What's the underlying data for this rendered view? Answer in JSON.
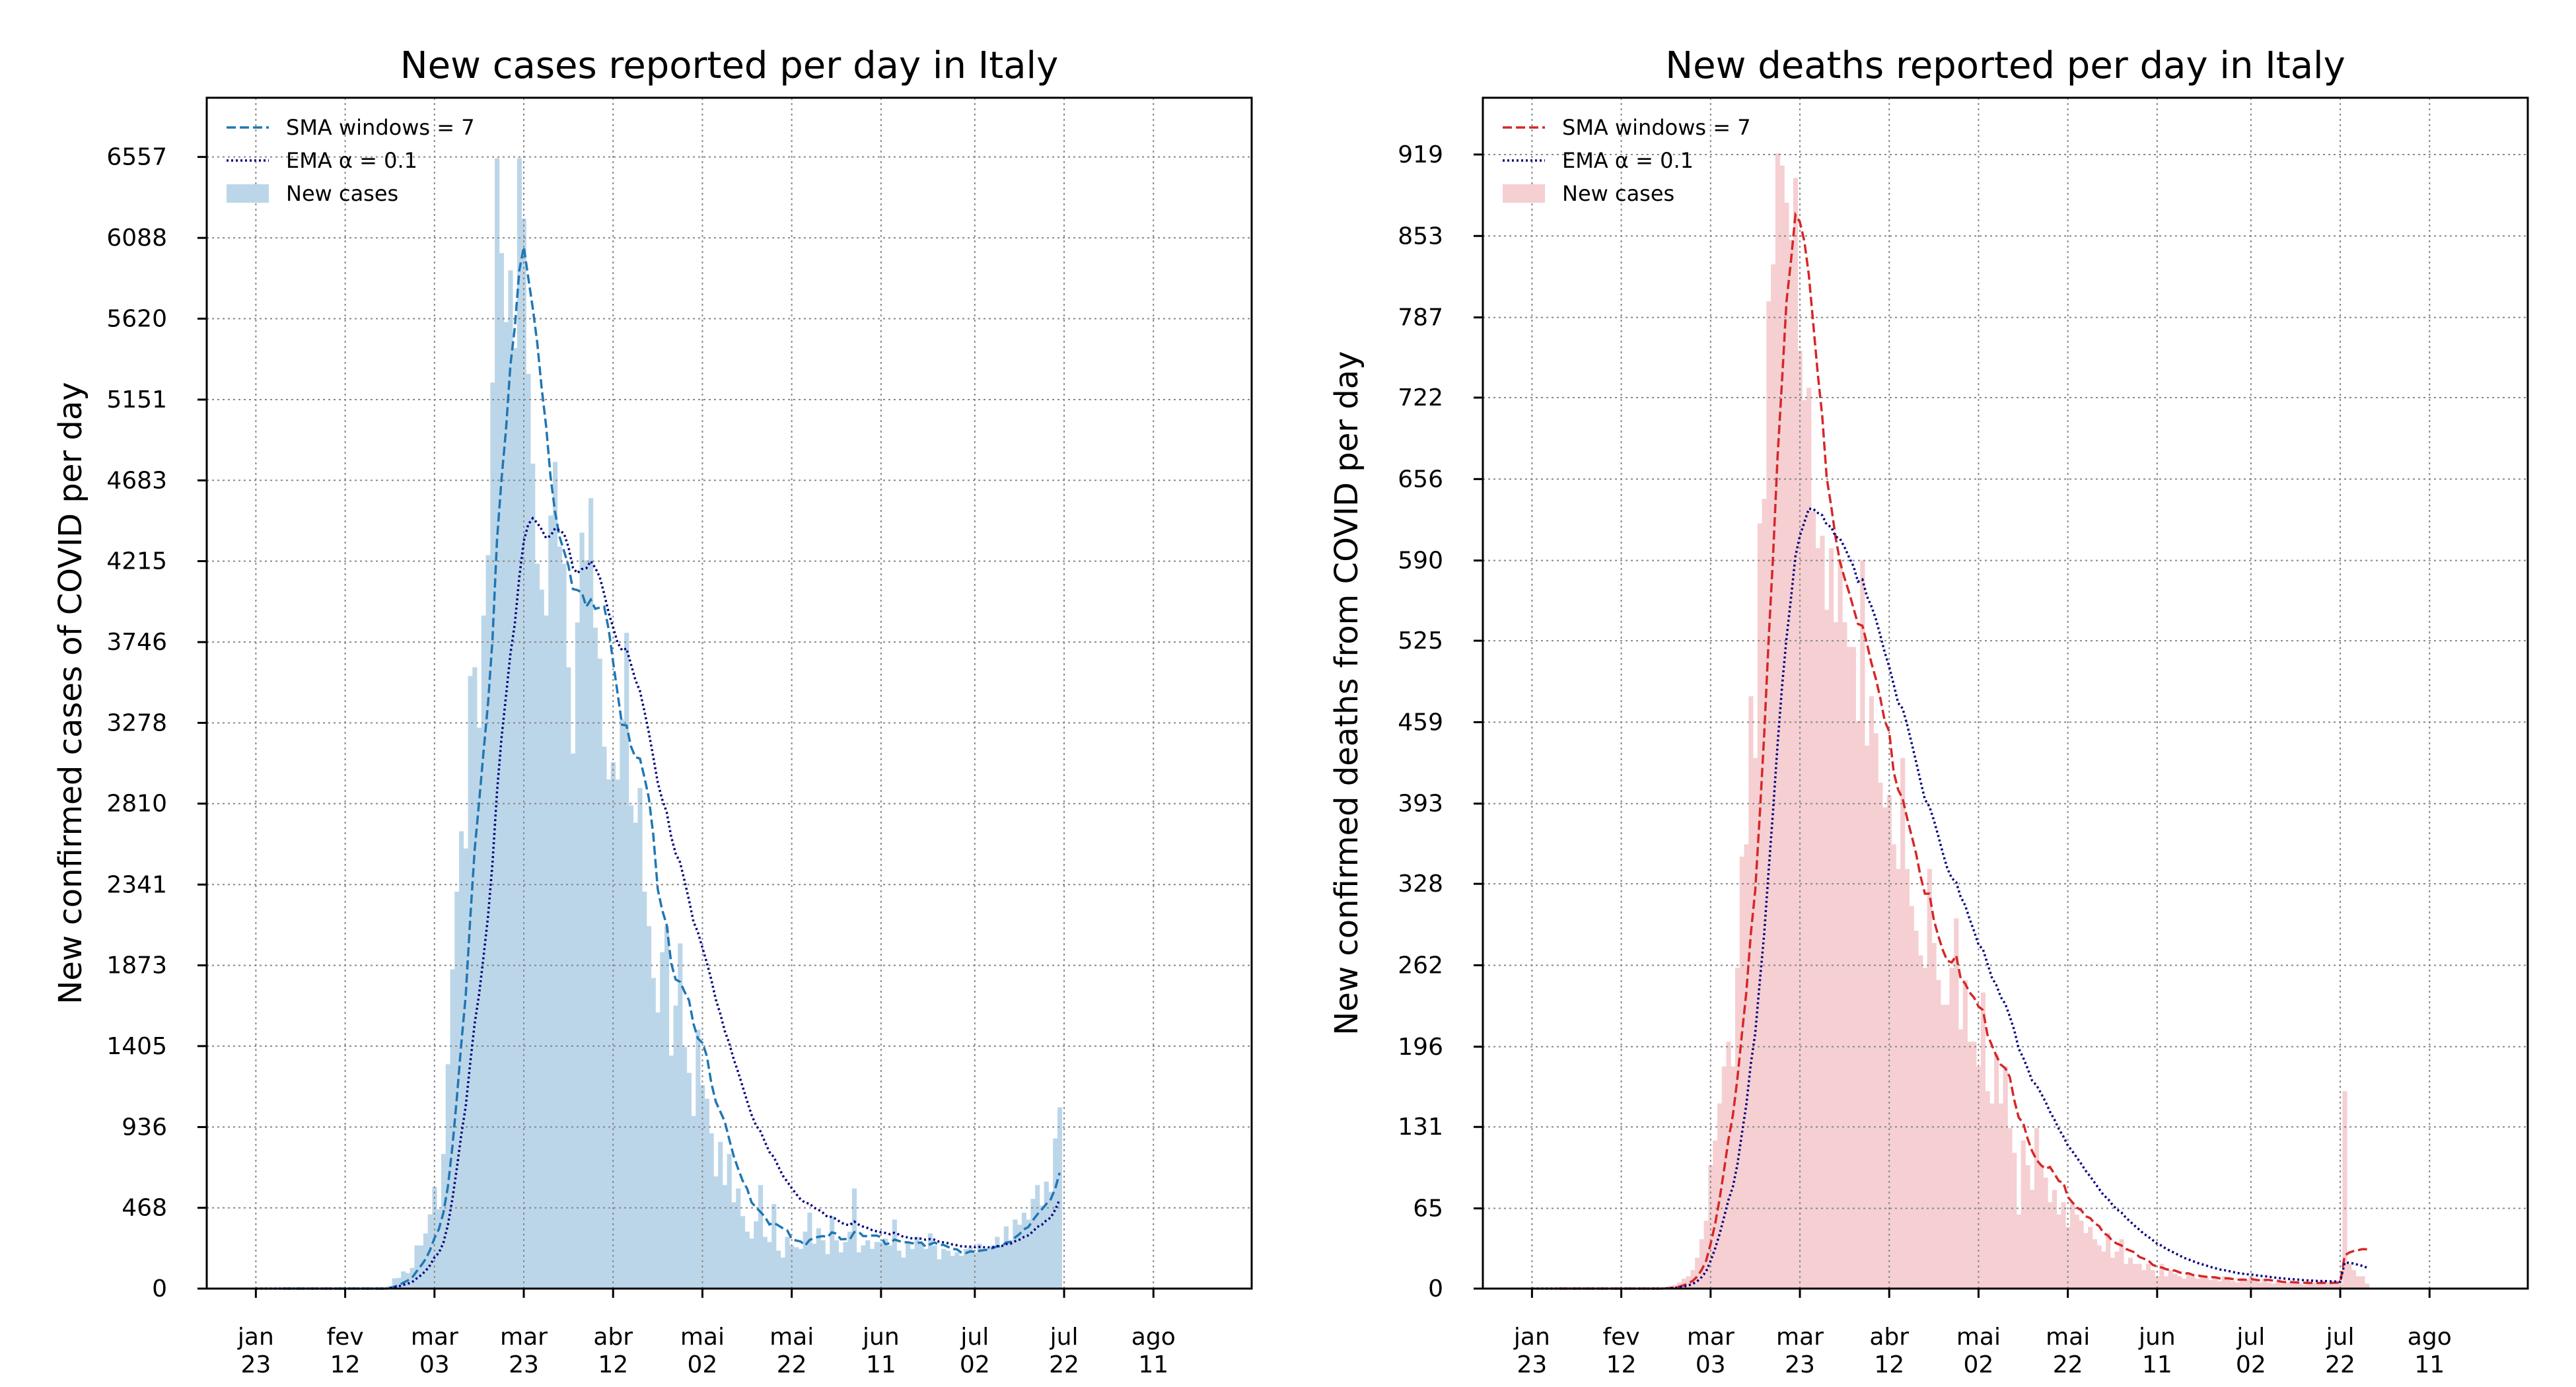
{
  "chart_data": [
    {
      "type": "bar",
      "title": "New cases reported per day in Italy",
      "ylabel": "New confirmed cases of COVID per day",
      "xlabel": "",
      "ylim": [
        0,
        6900
      ],
      "yticks": [
        "0",
        "468",
        "936",
        "1405",
        "1873",
        "2341",
        "2810",
        "3278",
        "3746",
        "4215",
        "4683",
        "5151",
        "5620",
        "6088",
        "6557"
      ],
      "ytick_values": [
        0,
        468,
        936,
        1405,
        1873,
        2341,
        2810,
        3278,
        3746,
        4215,
        4683,
        5151,
        5620,
        6088,
        6557
      ],
      "xticks": [
        {
          "day": 0,
          "line1": "jan",
          "line2": "23"
        },
        {
          "day": 20,
          "line1": "fev",
          "line2": "12"
        },
        {
          "day": 40,
          "line1": "mar",
          "line2": "03"
        },
        {
          "day": 60,
          "line1": "mar",
          "line2": "23"
        },
        {
          "day": 80,
          "line1": "abr",
          "line2": "12"
        },
        {
          "day": 100,
          "line1": "mai",
          "line2": "02"
        },
        {
          "day": 120,
          "line1": "mai",
          "line2": "22"
        },
        {
          "day": 140,
          "line1": "jun",
          "line2": "11"
        },
        {
          "day": 161,
          "line1": "jul",
          "line2": "02"
        },
        {
          "day": 181,
          "line1": "jul",
          "line2": "22"
        },
        {
          "day": 201,
          "line1": "ago",
          "line2": "11"
        }
      ],
      "xlim": [
        -11,
        223
      ],
      "legend": {
        "placement": "top-left",
        "sma_label": "SMA windows = 7",
        "ema_label": "EMA α = 0.1",
        "bar_label": "New cases"
      },
      "colors": {
        "bar": "#bcd6e9",
        "sma": "#1f77b4",
        "ema": "#00007f"
      },
      "start_day": 0,
      "values": [
        0,
        0,
        0,
        0,
        0,
        0,
        0,
        0,
        0,
        0,
        0,
        0,
        0,
        0,
        0,
        0,
        0,
        0,
        0,
        0,
        0,
        0,
        0,
        0,
        0,
        0,
        0,
        0,
        0,
        0,
        16,
        60,
        62,
        100,
        90,
        120,
        250,
        250,
        320,
        430,
        590,
        460,
        780,
        1300,
        1850,
        2300,
        2650,
        2550,
        3550,
        3600,
        3250,
        3900,
        4250,
        5250,
        6550,
        6000,
        5600,
        5900,
        5450,
        6550,
        6200,
        5300,
        4780,
        4200,
        4050,
        3900,
        4480,
        4790,
        4300,
        4200,
        3600,
        3100,
        3860,
        4380,
        4220,
        4580,
        3830,
        3650,
        3140,
        2950,
        3050,
        2950,
        3300,
        3800,
        2800,
        2700,
        2900,
        2300,
        2100,
        1800,
        1600,
        1950,
        2100,
        1350,
        1640,
        2000,
        1400,
        1250,
        1000,
        1500,
        1180,
        1100,
        900,
        650,
        850,
        600,
        780,
        500,
        580,
        420,
        330,
        290,
        390,
        600,
        300,
        270,
        490,
        220,
        180,
        300,
        250,
        240,
        230,
        330,
        440,
        260,
        350,
        280,
        200,
        420,
        280,
        210,
        270,
        330,
        580,
        210,
        250,
        280,
        230,
        270,
        270,
        290,
        250,
        400,
        220,
        180,
        270,
        230,
        300,
        270,
        230,
        320,
        250,
        170,
        230,
        220,
        190,
        210,
        190,
        230,
        240,
        210,
        260,
        220,
        230,
        250,
        300,
        250,
        360,
        280,
        400,
        370,
        440,
        400,
        520,
        600,
        480,
        620,
        560,
        870,
        1050
      ]
    },
    {
      "type": "bar",
      "title": "New deaths reported per day in Italy",
      "ylabel": "New confirmed deaths from COVID per day",
      "xlabel": "",
      "ylim": [
        0,
        965
      ],
      "yticks": [
        "0",
        "65",
        "131",
        "196",
        "262",
        "328",
        "393",
        "459",
        "525",
        "590",
        "656",
        "722",
        "787",
        "853",
        "919"
      ],
      "ytick_values": [
        0,
        65,
        131,
        196,
        262,
        328,
        393,
        459,
        525,
        590,
        656,
        722,
        787,
        853,
        919
      ],
      "xticks": [
        {
          "day": 0,
          "line1": "jan",
          "line2": "23"
        },
        {
          "day": 20,
          "line1": "fev",
          "line2": "12"
        },
        {
          "day": 40,
          "line1": "mar",
          "line2": "03"
        },
        {
          "day": 60,
          "line1": "mar",
          "line2": "23"
        },
        {
          "day": 80,
          "line1": "abr",
          "line2": "12"
        },
        {
          "day": 100,
          "line1": "mai",
          "line2": "02"
        },
        {
          "day": 120,
          "line1": "mai",
          "line2": "22"
        },
        {
          "day": 140,
          "line1": "jun",
          "line2": "11"
        },
        {
          "day": 161,
          "line1": "jul",
          "line2": "02"
        },
        {
          "day": 181,
          "line1": "jul",
          "line2": "22"
        },
        {
          "day": 201,
          "line1": "ago",
          "line2": "11"
        }
      ],
      "xlim": [
        -11,
        223
      ],
      "legend": {
        "placement": "top-left",
        "sma_label": "SMA windows = 7",
        "ema_label": "EMA α = 0.1",
        "bar_label": "New cases"
      },
      "colors": {
        "bar": "#f5cfd2",
        "sma": "#d62728",
        "ema": "#00007f"
      },
      "start_day": 0,
      "values": [
        0,
        0,
        0,
        0,
        0,
        0,
        0,
        0,
        0,
        0,
        0,
        0,
        0,
        0,
        0,
        0,
        0,
        0,
        0,
        0,
        0,
        0,
        0,
        0,
        0,
        0,
        0,
        0,
        0,
        0,
        1,
        2,
        3,
        5,
        8,
        10,
        15,
        25,
        40,
        55,
        100,
        120,
        150,
        180,
        200,
        180,
        260,
        350,
        360,
        480,
        430,
        620,
        640,
        800,
        830,
        920,
        910,
        880,
        850,
        900,
        760,
        720,
        730,
        630,
        600,
        610,
        550,
        600,
        540,
        590,
        540,
        520,
        520,
        460,
        590,
        440,
        480,
        450,
        410,
        390,
        400,
        360,
        340,
        430,
        340,
        310,
        290,
        270,
        260,
        340,
        280,
        250,
        230,
        230,
        260,
        300,
        210,
        250,
        200,
        200,
        180,
        240,
        160,
        150,
        190,
        150,
        180,
        130,
        110,
        60,
        120,
        100,
        80,
        130,
        100,
        90,
        70,
        80,
        60,
        70,
        50,
        70,
        60,
        55,
        45,
        50,
        40,
        35,
        30,
        45,
        25,
        30,
        40,
        20,
        25,
        20,
        20,
        15,
        20,
        15,
        10,
        20,
        10,
        15,
        12,
        10,
        8,
        12,
        10,
        8,
        10,
        9,
        7,
        8,
        6,
        10,
        8,
        6,
        5,
        8,
        7,
        10,
        6,
        5,
        8,
        5,
        4,
        6,
        4,
        5,
        5,
        6,
        4,
        3,
        5,
        5,
        4,
        6,
        5,
        4,
        5,
        4,
        160,
        20,
        15,
        10,
        10,
        4
      ]
    }
  ]
}
